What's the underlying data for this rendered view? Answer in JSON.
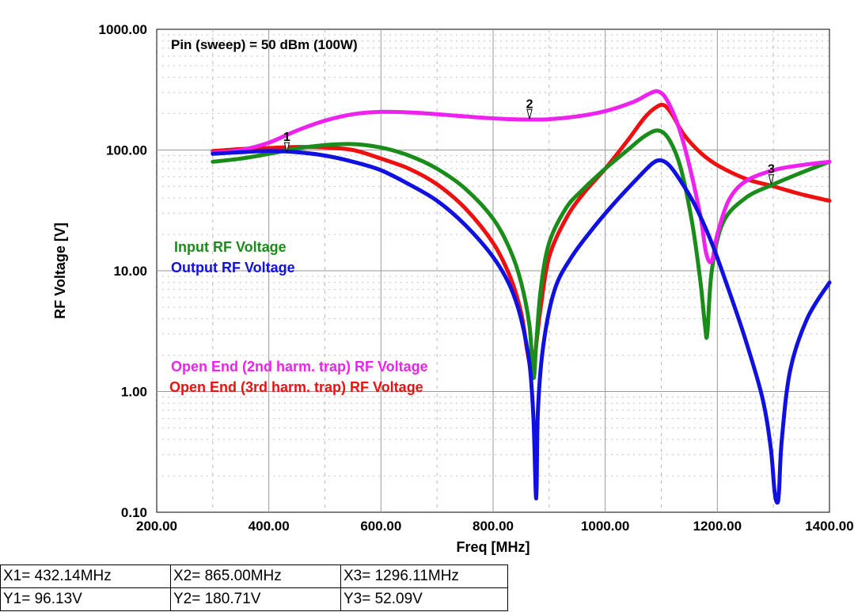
{
  "chart_data": {
    "type": "line",
    "annotation": "Pin (sweep) = 50 dBm (100W)",
    "xlabel": "Freq [MHz]",
    "ylabel": "RF Voltage [V]",
    "xlim": [
      200,
      1400
    ],
    "ylim": [
      0.1,
      1000
    ],
    "yscale": "log",
    "grid": true,
    "x_tick_labels": [
      "200.00",
      "400.00",
      "600.00",
      "800.00",
      "1000.00",
      "1200.00",
      "1400.00"
    ],
    "x_ticks": [
      200,
      400,
      600,
      800,
      1000,
      1200,
      1400
    ],
    "y_tick_labels": [
      "0.10",
      "1.00",
      "10.00",
      "100.00",
      "1000.00"
    ],
    "y_ticks": [
      0.1,
      1,
      10,
      100,
      1000
    ],
    "series": [
      {
        "name": "Input RF Voltage",
        "color": "#1a8c1a",
        "x": [
          300,
          350,
          400,
          450,
          500,
          550,
          600,
          650,
          700,
          750,
          800,
          830,
          850,
          865,
          872,
          877,
          885,
          900,
          930,
          960,
          1000,
          1040,
          1070,
          1095,
          1115,
          1135,
          1155,
          1170,
          1178,
          1182,
          1190,
          1210,
          1250,
          1300,
          1350,
          1400
        ],
        "y": [
          80,
          85,
          93,
          103,
          110,
          112,
          105,
          90,
          70,
          48,
          27,
          15,
          8,
          3.5,
          1.3,
          2.5,
          7,
          17,
          33,
          47,
          70,
          100,
          130,
          145,
          120,
          70,
          25,
          8,
          3.5,
          3,
          10,
          25,
          40,
          52,
          65,
          80
        ]
      },
      {
        "name": "Output RF Voltage",
        "color": "#1010e0",
        "x": [
          300,
          350,
          400,
          450,
          500,
          550,
          600,
          650,
          700,
          750,
          800,
          830,
          850,
          865,
          872,
          877,
          880,
          890,
          910,
          940,
          980,
          1020,
          1060,
          1085,
          1100,
          1115,
          1135,
          1160,
          1190,
          1220,
          1250,
          1280,
          1295,
          1302,
          1307,
          1310,
          1315,
          1330,
          1360,
          1400
        ],
        "y": [
          93,
          96,
          98,
          96,
          90,
          80,
          68,
          52,
          38,
          24,
          13,
          7.5,
          4,
          1.7,
          0.6,
          0.13,
          0.7,
          2.5,
          7,
          13,
          23,
          38,
          60,
          78,
          82,
          74,
          55,
          35,
          17,
          7,
          2.7,
          0.9,
          0.35,
          0.15,
          0.12,
          0.15,
          0.4,
          1.5,
          4,
          8
        ]
      },
      {
        "name": "Open End (2nd harm. trap) RF Voltage",
        "color": "#ee22ee",
        "x": [
          300,
          350,
          400,
          450,
          500,
          550,
          600,
          650,
          700,
          750,
          800,
          850,
          900,
          950,
          1000,
          1050,
          1080,
          1095,
          1110,
          1130,
          1150,
          1170,
          1180,
          1190,
          1200,
          1220,
          1250,
          1300,
          1350,
          1400
        ],
        "y": [
          95,
          100,
          115,
          145,
          175,
          198,
          207,
          205,
          198,
          190,
          183,
          179,
          180,
          190,
          210,
          250,
          295,
          305,
          260,
          160,
          75,
          28,
          14,
          12,
          20,
          38,
          55,
          68,
          75,
          80
        ]
      },
      {
        "name": "Open End (3rd harm. trap) RF Voltage",
        "color": "#ee1010",
        "x": [
          300,
          350,
          400,
          450,
          500,
          550,
          600,
          650,
          700,
          750,
          800,
          830,
          850,
          860,
          868,
          872,
          878,
          885,
          900,
          930,
          960,
          1000,
          1040,
          1070,
          1090,
          1105,
          1120,
          1140,
          1170,
          1200,
          1250,
          1300,
          1350,
          1400
        ],
        "y": [
          98,
          102,
          104,
          106,
          105,
          100,
          85,
          70,
          52,
          33,
          17,
          9,
          4.5,
          2.3,
          1.5,
          1.6,
          2.7,
          5,
          13,
          27,
          43,
          70,
          120,
          185,
          225,
          235,
          195,
          135,
          95,
          75,
          58,
          50,
          43,
          38
        ]
      }
    ],
    "markers": [
      {
        "label": "1",
        "x": 432.14,
        "y": 96.13
      },
      {
        "label": "2",
        "x": 865.0,
        "y": 180.71
      },
      {
        "label": "3",
        "x": 1296.11,
        "y": 52.09
      }
    ]
  },
  "readout": [
    {
      "x": "X1= 432.14MHz",
      "y": "Y1= 96.13V"
    },
    {
      "x": "X2= 865.00MHz",
      "y": "Y2= 180.71V"
    },
    {
      "x": "X3= 1296.11MHz",
      "y": "Y3= 52.09V"
    }
  ]
}
